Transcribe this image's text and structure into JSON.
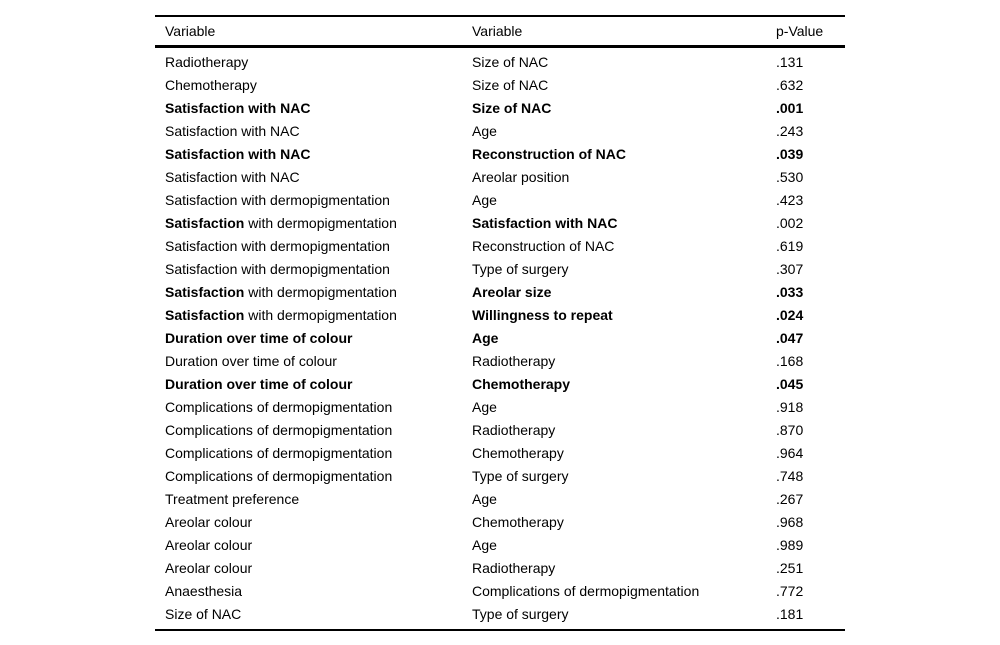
{
  "table": {
    "headers": [
      {
        "label": "Variable"
      },
      {
        "label": "Variable"
      },
      {
        "label": "p-Value"
      }
    ],
    "text_color": "#000000",
    "background_color": "#ffffff",
    "rows": [
      {
        "c1": {
          "b": "",
          "r": "Radiotherapy"
        },
        "c2": {
          "b": "",
          "r": "Size of NAC"
        },
        "p": {
          "b": "",
          "r": ".131"
        }
      },
      {
        "c1": {
          "b": "",
          "r": "Chemotherapy"
        },
        "c2": {
          "b": "",
          "r": "Size of NAC"
        },
        "p": {
          "b": "",
          "r": ".632"
        }
      },
      {
        "c1": {
          "b": "Satisfaction with NAC",
          "r": ""
        },
        "c2": {
          "b": "Size of NAC",
          "r": ""
        },
        "p": {
          "b": ".001",
          "r": ""
        }
      },
      {
        "c1": {
          "b": "",
          "r": "Satisfaction with NAC"
        },
        "c2": {
          "b": "",
          "r": "Age"
        },
        "p": {
          "b": "",
          "r": ".243"
        }
      },
      {
        "c1": {
          "b": "Satisfaction with NAC",
          "r": ""
        },
        "c2": {
          "b": "Reconstruction of NAC",
          "r": ""
        },
        "p": {
          "b": ".039",
          "r": ""
        }
      },
      {
        "c1": {
          "b": "",
          "r": "Satisfaction with NAC"
        },
        "c2": {
          "b": "",
          "r": "Areolar position"
        },
        "p": {
          "b": "",
          "r": ".530"
        }
      },
      {
        "c1": {
          "b": "",
          "r": "Satisfaction with dermopigmentation"
        },
        "c2": {
          "b": "",
          "r": "Age"
        },
        "p": {
          "b": "",
          "r": ".423"
        }
      },
      {
        "c1": {
          "b": "Satisfaction",
          "r": " with dermopigmentation"
        },
        "c2": {
          "b": "Satisfaction with NAC",
          "r": ""
        },
        "p": {
          "b": "",
          "r": ".002"
        }
      },
      {
        "c1": {
          "b": "",
          "r": "Satisfaction with dermopigmentation"
        },
        "c2": {
          "b": "",
          "r": "Reconstruction of NAC"
        },
        "p": {
          "b": "",
          "r": ".619"
        }
      },
      {
        "c1": {
          "b": "",
          "r": "Satisfaction with dermopigmentation"
        },
        "c2": {
          "b": "",
          "r": "Type of surgery"
        },
        "p": {
          "b": "",
          "r": ".307"
        }
      },
      {
        "c1": {
          "b": "Satisfaction",
          "r": " with dermopigmentation"
        },
        "c2": {
          "b": "Areolar size",
          "r": ""
        },
        "p": {
          "b": ".033",
          "r": ""
        }
      },
      {
        "c1": {
          "b": "Satisfaction",
          "r": " with dermopigmentation"
        },
        "c2": {
          "b": "Willingness to repeat",
          "r": ""
        },
        "p": {
          "b": ".024",
          "r": ""
        }
      },
      {
        "c1": {
          "b": "Duration over time of colour",
          "r": ""
        },
        "c2": {
          "b": "Age",
          "r": ""
        },
        "p": {
          "b": ".047",
          "r": ""
        }
      },
      {
        "c1": {
          "b": "",
          "r": "Duration over time of colour"
        },
        "c2": {
          "b": "",
          "r": "Radiotherapy"
        },
        "p": {
          "b": "",
          "r": ".168"
        }
      },
      {
        "c1": {
          "b": "Duration over time of colour",
          "r": ""
        },
        "c2": {
          "b": "Chemotherapy",
          "r": ""
        },
        "p": {
          "b": ".045",
          "r": ""
        }
      },
      {
        "c1": {
          "b": "",
          "r": "Complications of dermopigmentation"
        },
        "c2": {
          "b": "",
          "r": "Age"
        },
        "p": {
          "b": "",
          "r": ".918"
        }
      },
      {
        "c1": {
          "b": "",
          "r": "Complications of dermopigmentation"
        },
        "c2": {
          "b": "",
          "r": "Radiotherapy"
        },
        "p": {
          "b": "",
          "r": ".870"
        }
      },
      {
        "c1": {
          "b": "",
          "r": "Complications of dermopigmentation"
        },
        "c2": {
          "b": "",
          "r": "Chemotherapy"
        },
        "p": {
          "b": "",
          "r": ".964"
        }
      },
      {
        "c1": {
          "b": "",
          "r": "Complications of dermopigmentation"
        },
        "c2": {
          "b": "",
          "r": "Type of surgery"
        },
        "p": {
          "b": "",
          "r": ".748"
        }
      },
      {
        "c1": {
          "b": "",
          "r": "Treatment preference"
        },
        "c2": {
          "b": "",
          "r": "Age"
        },
        "p": {
          "b": "",
          "r": ".267"
        }
      },
      {
        "c1": {
          "b": "",
          "r": "Areolar colour"
        },
        "c2": {
          "b": "",
          "r": "Chemotherapy"
        },
        "p": {
          "b": "",
          "r": ".968"
        }
      },
      {
        "c1": {
          "b": "",
          "r": "Areolar colour"
        },
        "c2": {
          "b": "",
          "r": "Age"
        },
        "p": {
          "b": "",
          "r": ".989"
        }
      },
      {
        "c1": {
          "b": "",
          "r": "Areolar colour"
        },
        "c2": {
          "b": "",
          "r": "Radiotherapy"
        },
        "p": {
          "b": "",
          "r": ".251"
        }
      },
      {
        "c1": {
          "b": "",
          "r": "Anaesthesia"
        },
        "c2": {
          "b": "",
          "r": "Complications of dermopigmentation"
        },
        "p": {
          "b": "",
          "r": ".772"
        }
      },
      {
        "c1": {
          "b": "",
          "r": "Size of NAC"
        },
        "c2": {
          "b": "",
          "r": "Type of surgery"
        },
        "p": {
          "b": "",
          "r": ".181"
        }
      }
    ]
  }
}
